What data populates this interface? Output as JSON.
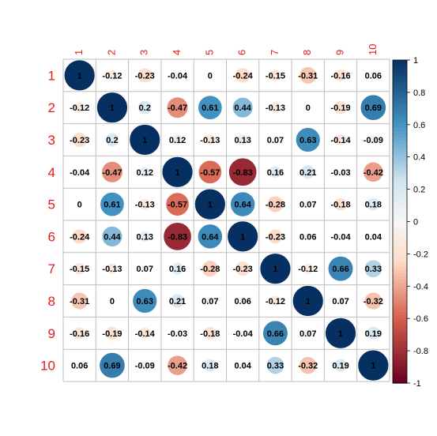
{
  "chart_data": {
    "type": "heatmap",
    "variables": [
      "1",
      "2",
      "3",
      "4",
      "5",
      "6",
      "7",
      "8",
      "9",
      "10"
    ],
    "matrix": [
      [
        1,
        -0.12,
        -0.23,
        -0.04,
        0,
        -0.24,
        -0.15,
        -0.31,
        -0.16,
        0.06
      ],
      [
        -0.12,
        1,
        0.2,
        -0.47,
        0.61,
        0.44,
        -0.13,
        0,
        -0.19,
        0.69
      ],
      [
        -0.23,
        0.2,
        1,
        0.12,
        -0.13,
        0.13,
        0.07,
        0.63,
        -0.14,
        -0.09
      ],
      [
        -0.04,
        -0.47,
        0.12,
        1,
        -0.57,
        -0.83,
        0.16,
        0.21,
        -0.03,
        -0.42
      ],
      [
        0,
        0.61,
        -0.13,
        -0.57,
        1,
        0.64,
        -0.28,
        0.07,
        -0.18,
        0.18
      ],
      [
        -0.24,
        0.44,
        0.13,
        -0.83,
        0.64,
        1,
        -0.23,
        0.06,
        -0.04,
        0.04
      ],
      [
        -0.15,
        -0.13,
        0.07,
        0.16,
        -0.28,
        -0.23,
        1,
        -0.12,
        0.66,
        0.33
      ],
      [
        -0.31,
        0,
        0.63,
        0.21,
        0.07,
        0.06,
        -0.12,
        1,
        0.07,
        -0.32
      ],
      [
        -0.16,
        -0.19,
        -0.14,
        -0.03,
        -0.18,
        -0.04,
        0.66,
        0.07,
        1,
        0.19
      ],
      [
        0.06,
        0.69,
        -0.09,
        -0.42,
        0.18,
        0.04,
        0.33,
        -0.32,
        0.19,
        1
      ]
    ],
    "colorbar": {
      "range": [
        -1,
        1
      ],
      "ticks": [
        "1",
        "0.8",
        "0.6",
        "0.4",
        "0.2",
        "0",
        "-0.2",
        "-0.4",
        "-0.6",
        "-0.8",
        "-1"
      ]
    },
    "colors": {
      "neg_end": "#67001F",
      "neg_mid": "#D6604D",
      "neg_light": "#FDDBC7",
      "center": "#F7F7F7",
      "pos_light": "#D1E5F0",
      "pos_mid": "#4393C3",
      "pos_end": "#053061",
      "label_red": "#E41A1C",
      "grid": "#BEBEBE"
    },
    "grid": true,
    "legend": "right"
  }
}
